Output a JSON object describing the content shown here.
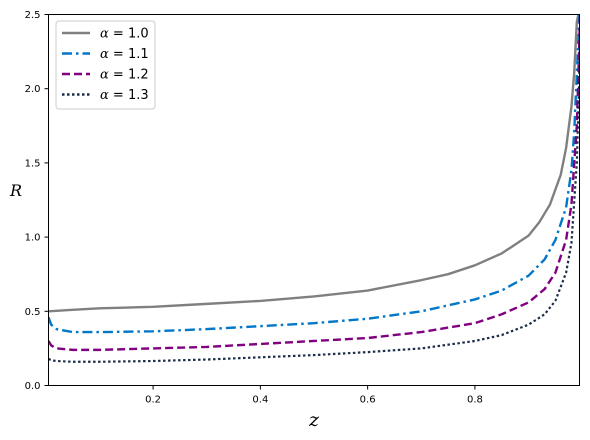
{
  "chart_data": {
    "type": "line",
    "xlabel": "z",
    "ylabel": "R",
    "xlim": [
      0.005,
      0.995
    ],
    "ylim": [
      0,
      2.5
    ],
    "xticks": [
      0.2,
      0.4,
      0.6,
      0.8
    ],
    "xtick_labels": [
      "0.2",
      "0.4",
      "0.6",
      "0.8"
    ],
    "yticks": [
      0.0,
      0.5,
      1.0,
      1.5,
      2.0,
      2.5
    ],
    "ytick_labels": [
      "0.0",
      "0.5",
      "1.0",
      "1.5",
      "2.0",
      "2.5"
    ],
    "grid": false,
    "legend_position": "top-left",
    "series": [
      {
        "name": "α = 1.0",
        "legend_label": "= 1.0",
        "color": "#808080",
        "style": "solid",
        "x": [
          0.005,
          0.05,
          0.1,
          0.2,
          0.3,
          0.4,
          0.5,
          0.6,
          0.7,
          0.75,
          0.8,
          0.85,
          0.9,
          0.92,
          0.94,
          0.96,
          0.97,
          0.98,
          0.985,
          0.99,
          0.993
        ],
        "y": [
          0.5,
          0.51,
          0.52,
          0.53,
          0.55,
          0.57,
          0.6,
          0.64,
          0.71,
          0.75,
          0.81,
          0.89,
          1.01,
          1.1,
          1.22,
          1.42,
          1.6,
          1.88,
          2.1,
          2.45,
          2.5
        ]
      },
      {
        "name": "α = 1.1",
        "legend_label": "= 1.1",
        "color": "#0077c8",
        "style": "dashdot",
        "x": [
          0.005,
          0.01,
          0.02,
          0.05,
          0.1,
          0.2,
          0.3,
          0.4,
          0.5,
          0.6,
          0.7,
          0.8,
          0.85,
          0.9,
          0.93,
          0.95,
          0.97,
          0.98,
          0.985,
          0.99,
          0.995
        ],
        "y": [
          0.46,
          0.41,
          0.38,
          0.36,
          0.36,
          0.365,
          0.38,
          0.4,
          0.42,
          0.45,
          0.5,
          0.58,
          0.64,
          0.74,
          0.85,
          0.98,
          1.2,
          1.45,
          1.7,
          2.1,
          2.5
        ]
      },
      {
        "name": "α = 1.2",
        "legend_label": "= 1.2",
        "color": "#800080",
        "style": "dashed",
        "x": [
          0.005,
          0.01,
          0.02,
          0.05,
          0.1,
          0.2,
          0.3,
          0.4,
          0.5,
          0.6,
          0.7,
          0.8,
          0.85,
          0.9,
          0.93,
          0.95,
          0.97,
          0.98,
          0.99,
          0.993,
          0.996
        ],
        "y": [
          0.3,
          0.27,
          0.25,
          0.24,
          0.24,
          0.25,
          0.26,
          0.28,
          0.3,
          0.32,
          0.36,
          0.42,
          0.48,
          0.56,
          0.65,
          0.76,
          0.98,
          1.22,
          1.75,
          2.1,
          2.5
        ]
      },
      {
        "name": "α = 1.3",
        "legend_label": "= 1.3",
        "color": "#1c2e4a",
        "style": "dotted",
        "x": [
          0.005,
          0.01,
          0.02,
          0.05,
          0.1,
          0.2,
          0.3,
          0.4,
          0.5,
          0.6,
          0.7,
          0.8,
          0.85,
          0.9,
          0.93,
          0.95,
          0.97,
          0.98,
          0.99,
          0.994,
          0.997
        ],
        "y": [
          0.18,
          0.17,
          0.165,
          0.16,
          0.16,
          0.165,
          0.175,
          0.19,
          0.205,
          0.225,
          0.25,
          0.3,
          0.34,
          0.41,
          0.48,
          0.57,
          0.76,
          0.96,
          1.5,
          2.0,
          2.5
        ]
      }
    ]
  }
}
